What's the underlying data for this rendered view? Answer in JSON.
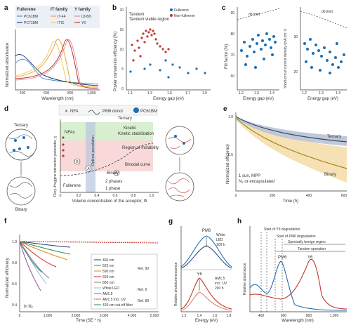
{
  "panel_labels": [
    "a",
    "b",
    "c",
    "d",
    "e",
    "f",
    "g",
    "h"
  ],
  "colors": {
    "fullerene_blue": "#1f6fb2",
    "nonfullerene_red": "#c0392b",
    "ternary": "#3a4a6b",
    "binary": "#c9a227",
    "binary_band": "#f3d9a0",
    "ternary_band": "#b9c3d6"
  },
  "panel_a": {
    "legend": {
      "fullerene_head": "Fullerene",
      "it_head": "IT family",
      "y_head": "Y family",
      "items": [
        "PC61BM",
        "PC71BM",
        "IT-4F",
        "ITIC",
        "L8-BO",
        "Y6"
      ]
    },
    "xlabel": "Wavelength (nm)",
    "ylabel": "Normalized absorbance",
    "xticks": [
      "400",
      "600",
      "800",
      "1,000"
    ]
  },
  "panel_b": {
    "ylabel": "Power conversion efficiency (%)",
    "xlabel": "Energy gap (eV)",
    "xticks": [
      "1.1",
      "1.3",
      "1.5",
      "1.7",
      "1.9"
    ],
    "yticks": [
      "0",
      "5",
      "10",
      "15",
      "20"
    ],
    "annotation": "Tandem viable region",
    "legend": [
      "Fullerene",
      "Non-fullerene"
    ]
  },
  "panel_c": {
    "left": {
      "ylabel": "Fill factor (%)",
      "xlabel": "Energy gap (eV)",
      "limit": "db limit",
      "yticks": [
        "60",
        "70",
        "80",
        "90"
      ],
      "xticks": [
        "1.2",
        "1.3",
        "1.4"
      ]
    },
    "right": {
      "ylabel": "Short-circuit current density (mA cm⁻²)",
      "xlabel": "Energy gap (eV)",
      "limit": "db limit",
      "yticks": [
        "20",
        "30"
      ],
      "xticks": [
        "1.2",
        "1.3",
        "1.4"
      ]
    }
  },
  "panel_d": {
    "legend": [
      "NFA",
      "PM6 donor",
      "PC61BM"
    ],
    "ylabel": "Flory–Huggins interaction parameter, χ",
    "xlabel": "Volume concentration of the acceptor, Φ",
    "xticks": [
      "0",
      "0.2",
      "0.4",
      "0.6",
      "0.8",
      "1.0"
    ],
    "regions": [
      "Kinetic stabilization",
      "Region of instability",
      "Binodal curve",
      "2 phases",
      "1 phase"
    ],
    "labels": [
      "NFAs",
      "Fullerene",
      "Optimal percolation",
      "Ternary",
      "Binary",
      "Binary",
      "Ternary"
    ],
    "markers": [
      "A",
      "B",
      "B"
    ]
  },
  "panel_e": {
    "ylabel": "Normalized efficiency",
    "xlabel": "Time (h)",
    "xticks": [
      "0",
      "200",
      "400",
      "600"
    ],
    "yticks": [
      "0.5",
      "1.0"
    ],
    "note1": "1 sun, MPP",
    "note2": "N₂ or encapsulated",
    "series": [
      "Ternary",
      "Binary"
    ]
  },
  "panel_f": {
    "ylabel": "Normalized efficiency",
    "xlabel": "Time (SE * h)",
    "xticks": [
      "0",
      "1,000",
      "2,000",
      "3,000",
      "4,000",
      "5,000"
    ],
    "yticks": [
      "0.4",
      "0.6",
      "0.8",
      "1.0"
    ],
    "note": "in N₂",
    "legend": [
      "460 nm",
      "523 nm",
      "590 nm",
      "660 nm",
      "850 nm",
      "White LED",
      "AM1.5",
      "AM1.5 incl. UV",
      "420-nm cut-off filter"
    ],
    "refs": [
      "Ref. 90",
      "Ref. 6",
      "Ref. 89"
    ]
  },
  "panel_g": {
    "ylabel": "Relative photoluminescence",
    "xlabel": "Energy (eV)",
    "xticks": [
      "1.2",
      "1.4",
      "1.6",
      "1.8"
    ],
    "top": {
      "material": "PM6",
      "cond1": "White",
      "cond2": "LED",
      "cond3": "100 h"
    },
    "bottom": {
      "material": "Y6",
      "cond1": "AM1.5",
      "cond2": "incl. UV",
      "cond3": "200 h"
    }
  },
  "panel_h": {
    "ylabel": "Relative absorbance",
    "xlabel": "Wavelength (nm)",
    "xticks": [
      "400",
      "600",
      "800",
      "1,000"
    ],
    "annotations": [
      "Start of Y6 degradation",
      "Start of PM6 degradation",
      "Spectrally benign region",
      "Tandem operation"
    ],
    "series": [
      "PM6",
      "Y6"
    ]
  }
}
